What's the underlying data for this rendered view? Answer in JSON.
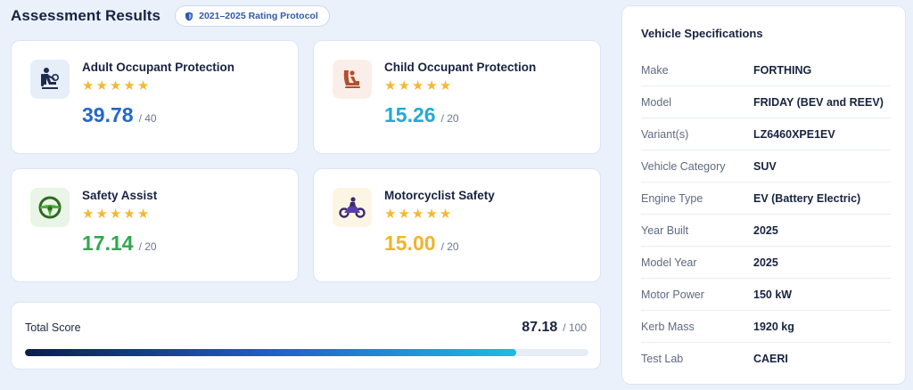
{
  "header": {
    "title": "Assessment Results",
    "protocol_badge": "2021–2025 Rating Protocol"
  },
  "categories": [
    {
      "title": "Adult Occupant Protection",
      "score": "39.78",
      "max": "/ 40",
      "stars": 5,
      "icon": "adult-occupant-icon",
      "color": "#2566c9",
      "icon_bg": "#e6eef9"
    },
    {
      "title": "Child Occupant Protection",
      "score": "15.26",
      "max": "/ 20",
      "stars": 5,
      "icon": "child-occupant-icon",
      "color": "#22a9d6",
      "icon_bg": "#fbeee8"
    },
    {
      "title": "Safety Assist",
      "score": "17.14",
      "max": "/ 20",
      "stars": 5,
      "icon": "steering-wheel-icon",
      "color": "#2fa84f",
      "icon_bg": "#e9f5e6"
    },
    {
      "title": "Motorcyclist Safety",
      "score": "15.00",
      "max": "/ 20",
      "stars": 5,
      "icon": "motorcycle-icon",
      "color": "#f0b429",
      "icon_bg": "#fdf5e4"
    }
  ],
  "total": {
    "label": "Total Score",
    "value": "87.18",
    "max": "/ 100",
    "progress_fraction": 0.8718
  },
  "specs": {
    "title": "Vehicle Specifications",
    "rows": [
      {
        "label": "Make",
        "value": "FORTHING"
      },
      {
        "label": "Model",
        "value": "FRIDAY (BEV and REEV)"
      },
      {
        "label": "Variant(s)",
        "value": "LZ6460XPE1EV"
      },
      {
        "label": "Vehicle Category",
        "value": "SUV"
      },
      {
        "label": "Engine Type",
        "value": "EV (Battery Electric)"
      },
      {
        "label": "Year Built",
        "value": "2025"
      },
      {
        "label": "Model Year",
        "value": "2025"
      },
      {
        "label": "Motor Power",
        "value": "150 kW"
      },
      {
        "label": "Kerb Mass",
        "value": "1920 kg"
      },
      {
        "label": "Test Lab",
        "value": "CAERI"
      }
    ]
  },
  "colors": {
    "star": "#f5b82e",
    "accent": "#2e5aa8"
  }
}
